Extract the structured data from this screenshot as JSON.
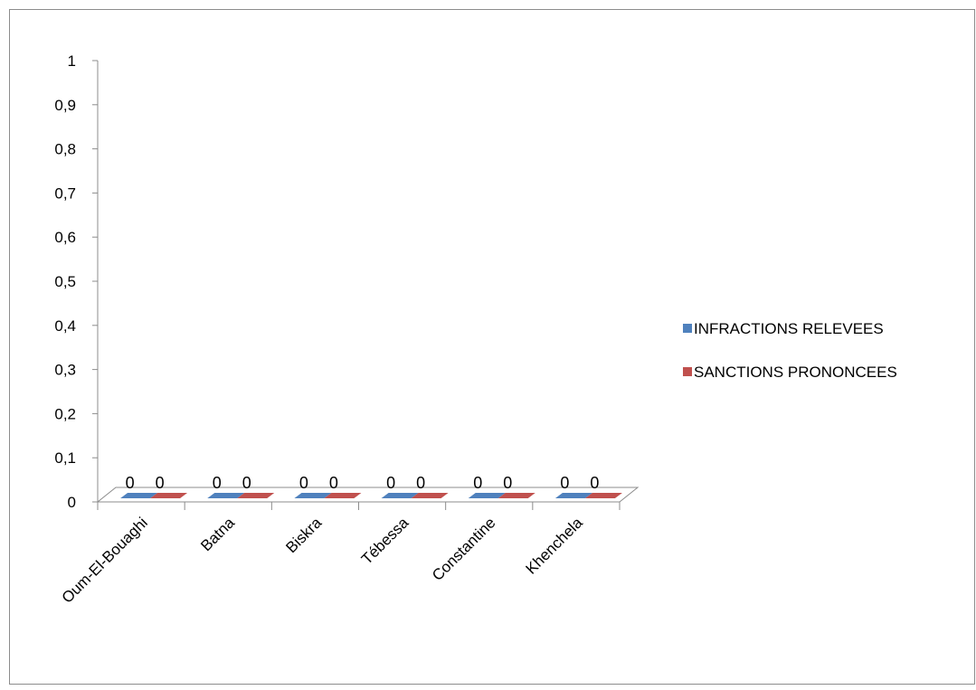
{
  "chart_data": {
    "type": "bar",
    "style": "3d-clustered-column",
    "title": "",
    "xlabel": "",
    "ylabel": "",
    "categories": [
      "Oum-El-Bouaghi",
      "Batna",
      "Biskra",
      "Tébessa",
      "Constantine",
      "Khenchela"
    ],
    "series": [
      {
        "name": "INFRACTIONS  RELEVEES",
        "color": "#4F81BD",
        "values": [
          0,
          0,
          0,
          0,
          0,
          0
        ]
      },
      {
        "name": "SANCTIONS PRONONCEES",
        "color": "#C0504D",
        "values": [
          0,
          0,
          0,
          0,
          0,
          0
        ]
      }
    ],
    "ylim": [
      0,
      1
    ],
    "yticks": [
      "0",
      "0,1",
      "0,2",
      "0,3",
      "0,4",
      "0,5",
      "0,6",
      "0,7",
      "0,8",
      "0,9",
      "1"
    ],
    "data_labels": true,
    "grid": false,
    "legend_position": "right"
  }
}
